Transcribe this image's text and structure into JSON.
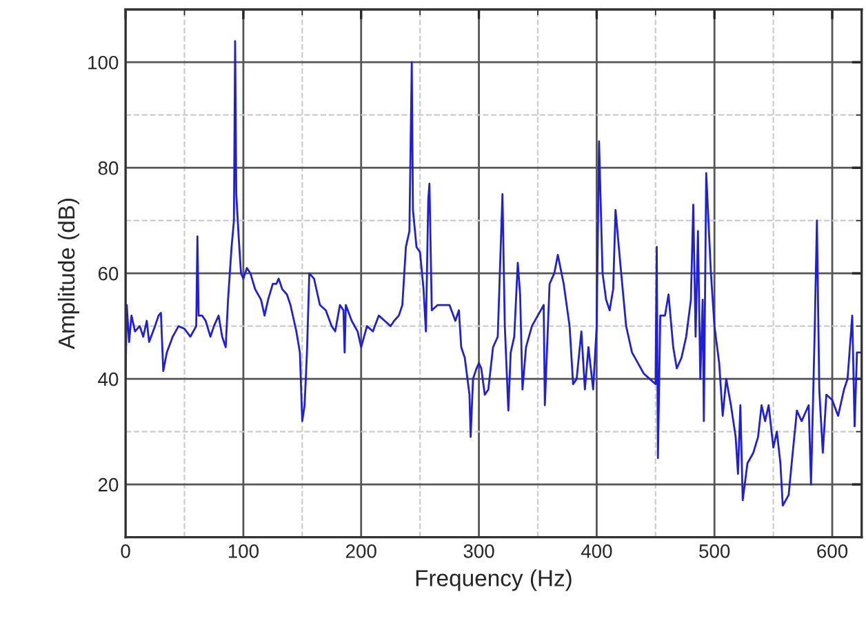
{
  "chart_data": {
    "type": "line",
    "xlabel": "Frequency (Hz)",
    "ylabel": "Amplitude (dB)",
    "xlim": [
      0,
      625
    ],
    "ylim": [
      10,
      110
    ],
    "xticks": [
      0,
      100,
      200,
      300,
      400,
      500,
      600
    ],
    "yticks": [
      20,
      40,
      60,
      80,
      100
    ],
    "grid": true,
    "marker": "none",
    "line_style": "solid",
    "series": [
      {
        "color": "#1f1fd6",
        "x": [
          0,
          1,
          3,
          5,
          8,
          12,
          15,
          18,
          20,
          25,
          28,
          30,
          32,
          35,
          40,
          45,
          50,
          55,
          60,
          61,
          62,
          65,
          68,
          72,
          75,
          79,
          82,
          85,
          87,
          90,
          92,
          93,
          94,
          96,
          98,
          100,
          103,
          106,
          110,
          115,
          118,
          121,
          125,
          128,
          130,
          133,
          137,
          140,
          145,
          148,
          150,
          152,
          154,
          156,
          160,
          165,
          170,
          175,
          178,
          182,
          185,
          186,
          187,
          192,
          197,
          200,
          205,
          210,
          215,
          220,
          225,
          228,
          232,
          235,
          238,
          241,
          242,
          243,
          244,
          247,
          250,
          253,
          255,
          257,
          258,
          260,
          265,
          270,
          275,
          280,
          283,
          285,
          288,
          292,
          293,
          295,
          298,
          300,
          302,
          305,
          308,
          312,
          316,
          320,
          322,
          325,
          327,
          330,
          333,
          335,
          337,
          340,
          345,
          350,
          355,
          356,
          360,
          364,
          367,
          372,
          377,
          380,
          383,
          387,
          390,
          393,
          397,
          400,
          402,
          405,
          408,
          411,
          414,
          416,
          420,
          425,
          430,
          435,
          440,
          445,
          450,
          451,
          452,
          454,
          458,
          461,
          465,
          468,
          472,
          476,
          480,
          482,
          484,
          486,
          488,
          490,
          491,
          493,
          497,
          500,
          504,
          507,
          510,
          514,
          518,
          520,
          522,
          524,
          528,
          533,
          537,
          540,
          543,
          546,
          550,
          553,
          556,
          558,
          563,
          566,
          570,
          574,
          578,
          580,
          582,
          585,
          587,
          589,
          592,
          595,
          600,
          605,
          610,
          613,
          617,
          619,
          621,
          624
        ],
        "values": [
          40,
          54,
          47,
          52,
          49,
          50,
          48,
          51,
          47,
          50,
          52,
          52.5,
          41.5,
          45,
          48,
          50,
          49.5,
          48,
          50,
          67,
          52,
          52,
          51,
          48,
          50,
          52,
          48,
          46,
          55,
          65,
          70,
          104,
          75,
          67,
          60,
          59,
          61,
          60,
          57,
          55,
          52,
          55,
          58,
          58,
          59,
          57,
          56,
          54,
          49,
          45,
          32,
          35,
          45,
          60,
          59,
          54,
          53,
          50,
          49,
          54,
          53,
          45,
          54,
          51,
          49,
          46,
          50,
          49,
          52,
          51,
          50,
          51,
          52,
          54,
          65,
          68,
          84,
          100,
          72,
          65,
          64,
          57,
          49,
          74,
          77,
          53,
          54,
          54,
          54,
          51,
          53,
          46,
          44,
          37,
          29,
          40,
          42,
          43,
          42,
          37,
          38,
          46,
          48,
          75,
          50,
          34,
          45,
          48,
          62,
          56,
          38,
          46,
          50,
          52,
          54,
          35,
          58,
          60,
          63.5,
          58,
          50,
          39,
          40,
          49,
          38,
          46,
          38,
          50,
          85,
          60,
          55,
          53,
          57,
          72,
          62,
          50,
          45,
          43,
          41,
          40,
          39,
          65,
          25,
          52,
          52,
          56,
          46,
          42,
          44,
          48,
          55,
          73,
          48,
          68,
          40,
          55,
          32,
          79,
          60,
          50,
          43,
          33,
          40,
          35,
          29,
          22,
          35,
          17,
          24,
          26,
          29,
          35,
          32,
          35,
          27,
          30,
          24,
          16,
          18,
          25,
          34,
          32,
          34,
          35,
          20,
          48,
          70,
          38,
          26,
          37,
          36,
          33,
          38,
          40,
          52,
          31,
          45,
          45
        ]
      }
    ]
  }
}
